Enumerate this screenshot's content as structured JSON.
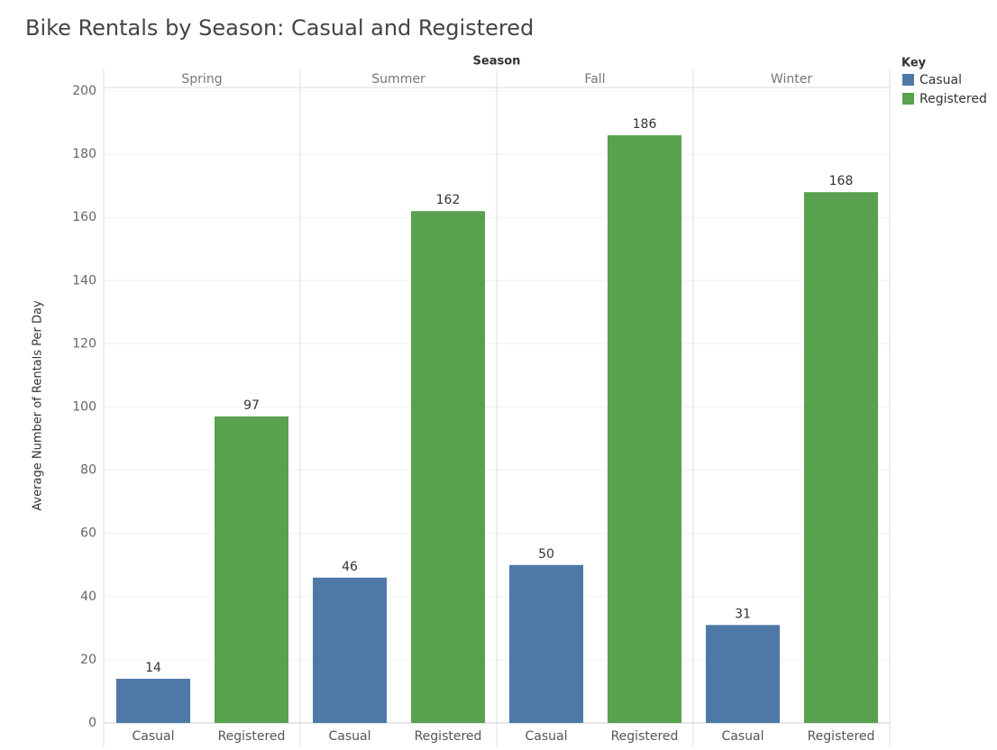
{
  "chart_data": {
    "type": "bar",
    "title": "Bike Rentals by Season: Casual and Registered",
    "x_label": "Season",
    "y_label": "Average Number of Rentals Per Day",
    "legend_title": "Key",
    "categories": [
      "Spring",
      "Summer",
      "Fall",
      "Winter"
    ],
    "series": [
      {
        "name": "Casual",
        "color": "#4e79a7",
        "values": [
          14,
          46,
          50,
          31
        ]
      },
      {
        "name": "Registered",
        "color": "#59a14f",
        "values": [
          97,
          162,
          186,
          168
        ]
      }
    ],
    "ylim": [
      0,
      200
    ],
    "yticks": [
      0,
      20,
      40,
      60,
      80,
      100,
      120,
      140,
      160,
      180,
      200
    ],
    "grid": true
  }
}
